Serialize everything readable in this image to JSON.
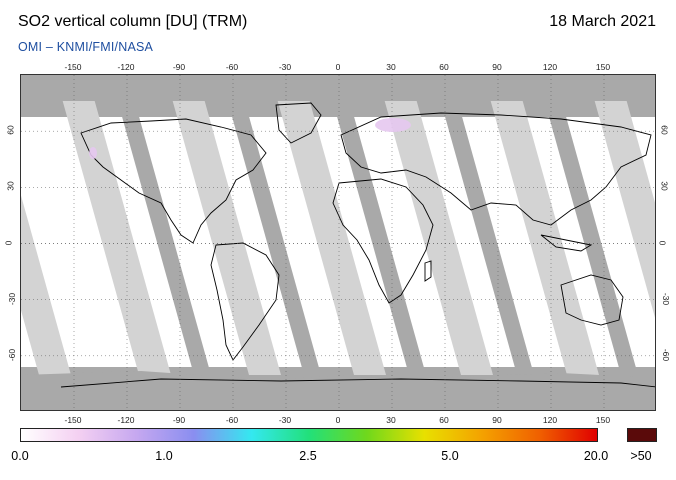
{
  "header": {
    "title": "SO2 vertical column [DU] (TRM)",
    "date": "18 March 2021",
    "credit": "OMI  –  KNMI/FMI/NASA"
  },
  "map": {
    "longitude_ticks": [
      "-150",
      "-120",
      "-90",
      "-60",
      "-30",
      "0",
      "30",
      "60",
      "90",
      "120",
      "150"
    ],
    "latitude_ticks": [
      "60",
      "30",
      "0",
      "-30",
      "-60"
    ],
    "colors": {
      "no_data": "#a9a9a9",
      "observed": "#ffffff",
      "swath_gap": "#d3d3d3",
      "land_outline": "#000000",
      "low_so2_patch": "#e6c8f0"
    }
  },
  "colorbar": {
    "labels": [
      "0.0",
      "1.0",
      "2.5",
      "5.0",
      "20.0"
    ],
    "over_label": ">50",
    "over_color": "#5a0a0a",
    "gradient_stops": [
      "#ffffff",
      "#f4d0f2",
      "#c6a8f0",
      "#8a8ef0",
      "#34e8f0",
      "#22e07a",
      "#6fd81c",
      "#e8e000",
      "#f4a200",
      "#f06000",
      "#e00000"
    ]
  }
}
